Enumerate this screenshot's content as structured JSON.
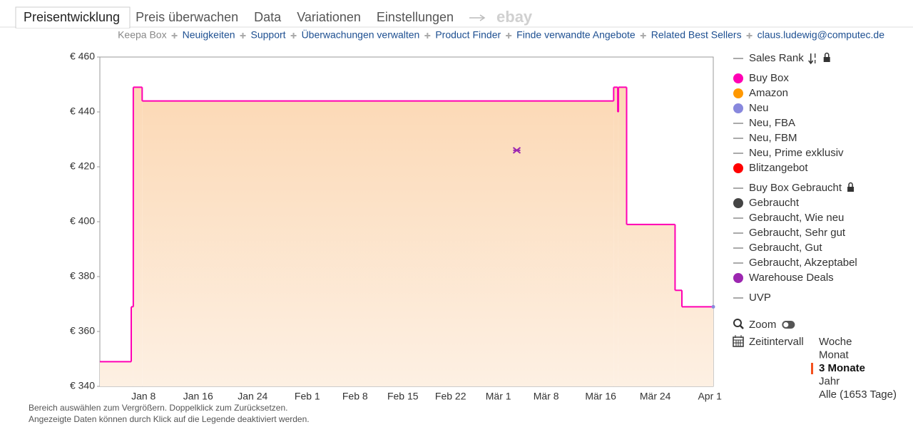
{
  "tabs": [
    "Preisentwicklung",
    "Preis überwachen",
    "Data",
    "Variationen",
    "Einstellungen",
    "ebay"
  ],
  "links": [
    "Keepa Box",
    "Neuigkeiten",
    "Support",
    "Überwachungen verwalten",
    "Product Finder",
    "Finde verwandte Angebote",
    "Related Best Sellers",
    "claus.ludewig@computec.de"
  ],
  "chart_data": {
    "type": "line",
    "step": true,
    "xlim": [
      1.6,
      91.5
    ],
    "ylim": [
      340,
      460
    ],
    "xticks": [
      {
        "value": 8,
        "label": "Jan 8"
      },
      {
        "value": 16,
        "label": "Jan 16"
      },
      {
        "value": 24,
        "label": "Jan 24"
      },
      {
        "value": 32,
        "label": "Feb 1"
      },
      {
        "value": 39,
        "label": "Feb 8"
      },
      {
        "value": 46,
        "label": "Feb 15"
      },
      {
        "value": 53,
        "label": "Feb 22"
      },
      {
        "value": 60,
        "label": "Mär 1"
      },
      {
        "value": 67,
        "label": "Mär 8"
      },
      {
        "value": 75,
        "label": "Mär 16"
      },
      {
        "value": 83,
        "label": "Mär 24"
      },
      {
        "value": 91,
        "label": "Apr 1"
      }
    ],
    "yticks": [
      {
        "value": 340,
        "label": "€ 340"
      },
      {
        "value": 360,
        "label": "€ 360"
      },
      {
        "value": 380,
        "label": "€ 380"
      },
      {
        "value": 400,
        "label": "€ 400"
      },
      {
        "value": 420,
        "label": "€ 420"
      },
      {
        "value": 440,
        "label": "€ 440"
      },
      {
        "value": 460,
        "label": "€ 460"
      }
    ],
    "series": [
      {
        "name": "Sales Rank",
        "color": "#aaaaaa",
        "marker": "line",
        "x": [],
        "values": []
      },
      {
        "name": "Buy Box",
        "color": "#ff00b4",
        "marker": "dot",
        "x": [
          1.6,
          6.2,
          6.5,
          7.8,
          76.9,
          77.5,
          77.6,
          78.8,
          85.9,
          86.9
        ],
        "values": [
          349,
          369,
          449,
          444,
          449,
          440,
          449,
          399,
          375,
          369
        ]
      },
      {
        "name": "Amazon",
        "color": "#ff9800",
        "marker": "dot",
        "x": [],
        "values": []
      },
      {
        "name": "Neu",
        "color": "#8888dd",
        "marker": "dot",
        "x": [
          91.5
        ],
        "values": [
          369
        ]
      },
      {
        "name": "Neu, FBA",
        "color": "#aaaaaa",
        "marker": "line",
        "x": [],
        "values": []
      },
      {
        "name": "Neu, FBM",
        "color": "#aaaaaa",
        "marker": "line",
        "x": [],
        "values": []
      },
      {
        "name": "Neu, Prime exklusiv",
        "color": "#aaaaaa",
        "marker": "line",
        "x": [],
        "values": []
      },
      {
        "name": "Blitzangebot",
        "color": "#ff0000",
        "marker": "dot",
        "x": [],
        "values": []
      },
      {
        "name": "Buy Box Gebraucht",
        "color": "#aaaaaa",
        "marker": "line",
        "x": [],
        "values": []
      },
      {
        "name": "Gebraucht",
        "color": "#444444",
        "marker": "dot",
        "x": [],
        "values": []
      },
      {
        "name": "Gebraucht, Wie neu",
        "color": "#aaaaaa",
        "marker": "line",
        "x": [],
        "values": []
      },
      {
        "name": "Gebraucht, Sehr gut",
        "color": "#aaaaaa",
        "marker": "line",
        "x": [],
        "values": []
      },
      {
        "name": "Gebraucht, Gut",
        "color": "#aaaaaa",
        "marker": "line",
        "x": [],
        "values": []
      },
      {
        "name": "Gebraucht, Akzeptabel",
        "color": "#aaaaaa",
        "marker": "line",
        "x": [],
        "values": []
      },
      {
        "name": "Warehouse Deals",
        "color": "#9c27b0",
        "marker": "dot",
        "x": [
          62.7
        ],
        "values": [
          426
        ]
      },
      {
        "name": "UVP",
        "color": "#aaaaaa",
        "marker": "line",
        "x": [],
        "values": []
      }
    ]
  },
  "controls": {
    "zoom": "Zoom",
    "interval": "Zeitintervall",
    "options": [
      "Woche",
      "Monat",
      "3 Monate",
      "Jahr",
      "Alle (1653 Tage)"
    ],
    "selected": 2
  },
  "footer": [
    "Bereich auswählen zum Vergrößern. Doppelklick zum Zurücksetzen.",
    "Angezeigte Daten können durch Klick auf die Legende deaktiviert werden."
  ]
}
